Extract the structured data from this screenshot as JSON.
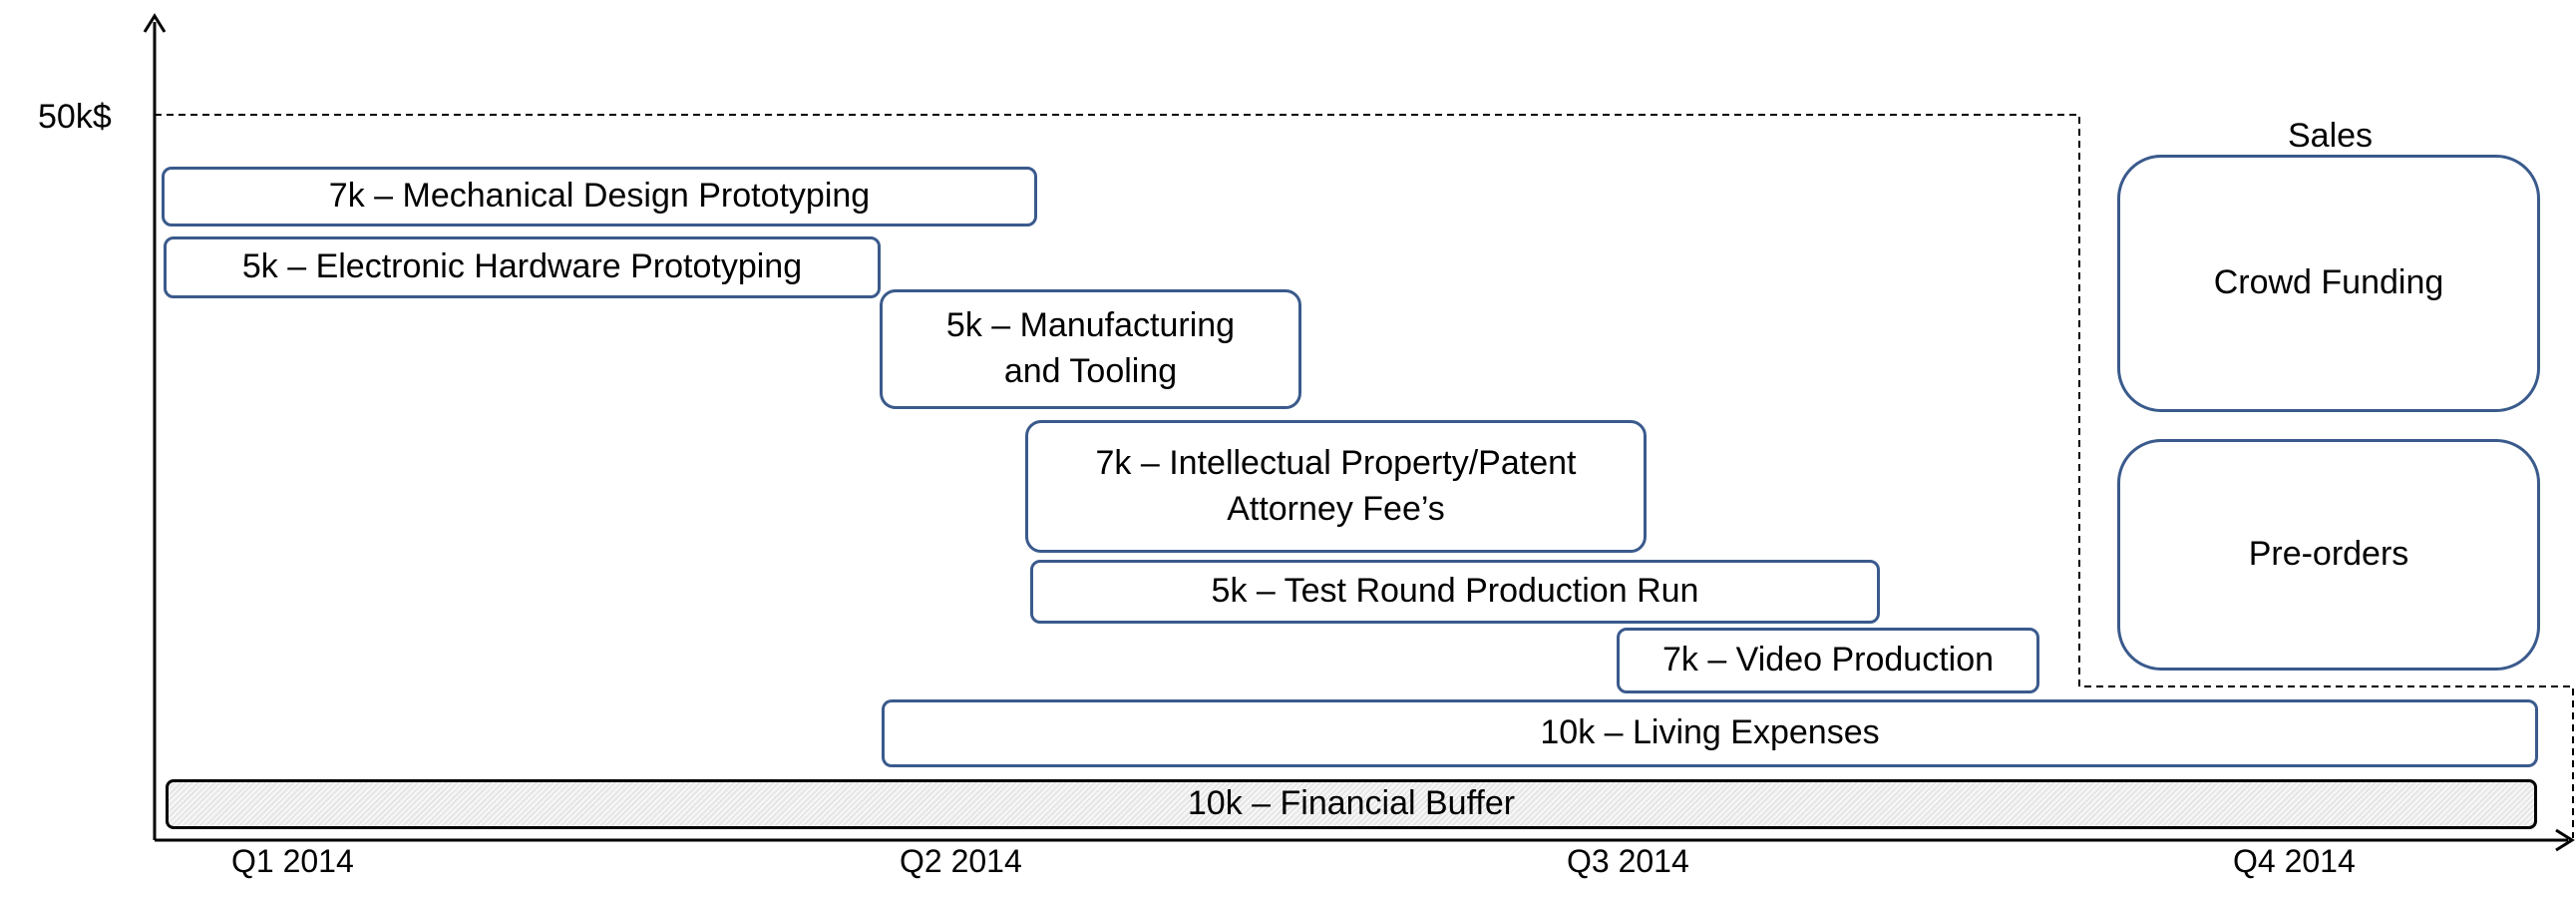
{
  "axis": {
    "y_max_label": "50k$",
    "quarters": [
      "Q1 2014",
      "Q2 2014",
      "Q3 2014",
      "Q4 2014"
    ]
  },
  "sales": {
    "heading": "Sales",
    "crowd_funding": "Crowd Funding",
    "pre_orders": "Pre-orders"
  },
  "expenses": {
    "mechanical": "7k – Mechanical Design Prototyping",
    "electronic": "5k – Electronic Hardware Prototyping",
    "manufacturing_line1": "5k – Manufacturing",
    "manufacturing_line2": "and Tooling",
    "ip_line1": "7k – Intellectual Property/Patent",
    "ip_line2": "Attorney  Fee’s",
    "test_round": "5k – Test Round Production Run",
    "video": "7k – Video Production",
    "living": "10k – Living Expenses",
    "buffer": "10k – Financial Buffer"
  }
}
